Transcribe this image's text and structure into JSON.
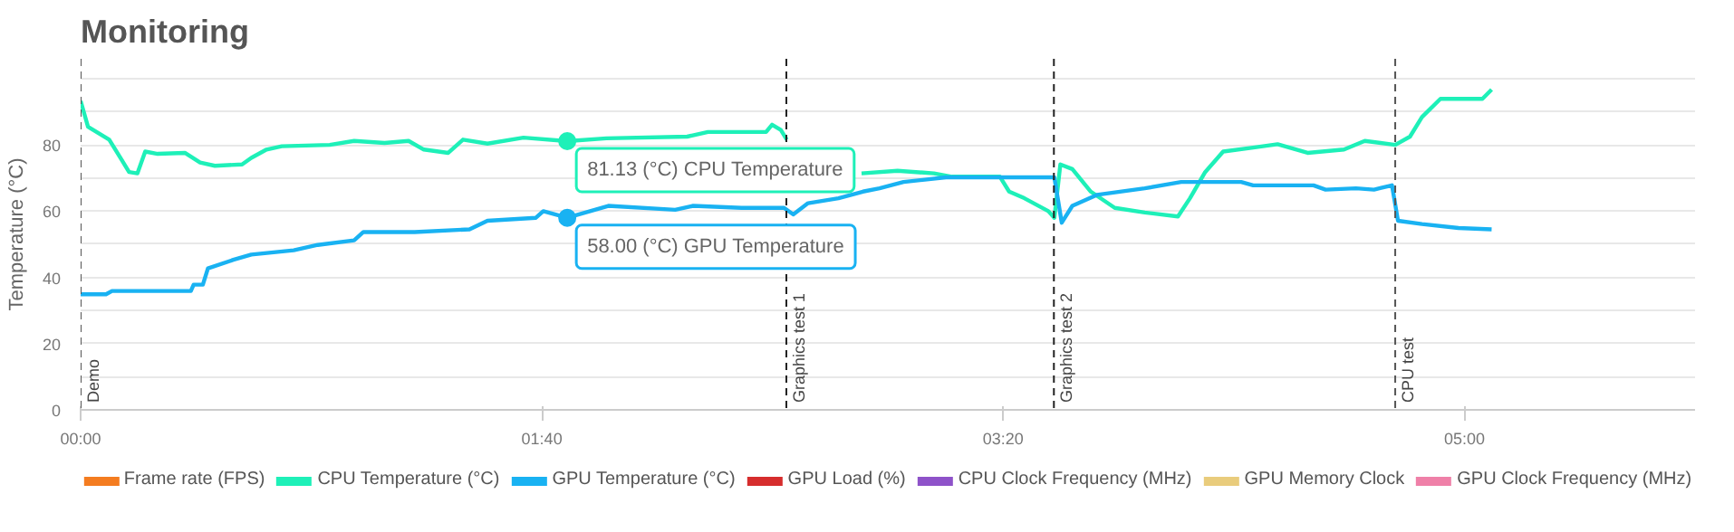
{
  "chart_data": {
    "type": "line",
    "title": "Monitoring",
    "ylabel": "Temperature (°C)",
    "xlim": [
      0,
      350
    ],
    "ylim": [
      0,
      106
    ],
    "xticks": [
      {
        "value": 0,
        "label": "00:00"
      },
      {
        "value": 100,
        "label": "01:40"
      },
      {
        "value": 200,
        "label": "03:20"
      },
      {
        "value": 300,
        "label": "05:00"
      }
    ],
    "yticks": [
      0,
      {
        "value": 10,
        "label": null
      },
      20,
      {
        "value": 30,
        "label": null
      },
      40,
      {
        "value": 50,
        "label": null
      },
      60,
      {
        "value": 70,
        "label": null
      },
      80,
      {
        "value": 90,
        "label": null
      },
      {
        "value": 100,
        "label": null
      }
    ],
    "grid": "y",
    "legend": "bottom",
    "marker": "none",
    "line_style": "solid",
    "series": [
      {
        "name": "Frame rate (FPS)",
        "color": "#f47c20"
      },
      {
        "name": "CPU Temperature (°C)",
        "color": "#1ef0b8",
        "x": [
          0,
          1.6,
          6.2,
          8.8,
          10.5,
          12.3,
          14,
          16.7,
          22.6,
          25.9,
          29.1,
          35,
          37,
          40.3,
          43.6,
          54,
          59.3,
          65.9,
          71.1,
          74.4,
          79.7,
          82.9,
          88.2,
          96,
          105.5,
          114,
          131.5,
          136,
          148.6,
          149.9,
          151.8,
          153.1,
          155,
          165.4,
          169.3,
          177.1,
          185,
          188.9,
          199.3,
          201.3,
          204.6,
          209.8,
          211.1,
          212.4,
          215,
          219,
          224.2,
          230.7,
          237.9,
          240.5,
          243.8,
          247.7,
          254.2,
          259.5,
          266,
          273.9,
          278.4,
          285,
          288.2,
          290.8,
          294.8,
          303.9,
          305.9
        ],
        "values": [
          93.3,
          85.5,
          81.6,
          75.7,
          71.8,
          71.4,
          78,
          77.3,
          77.6,
          74.7,
          73.7,
          74.1,
          76.1,
          78.6,
          79.6,
          80,
          81.2,
          80.6,
          81.2,
          78.6,
          77.6,
          81.6,
          80.4,
          82.2,
          81.13,
          82,
          82.5,
          83.9,
          83.9,
          86.1,
          84.5,
          81.6,
          null,
          null,
          71.4,
          72.2,
          71.4,
          70.4,
          70.4,
          65.9,
          63.9,
          60,
          58,
          74.1,
          72.7,
          65.9,
          61,
          59.6,
          58.4,
          63.9,
          71.8,
          78,
          79.2,
          80.2,
          77.6,
          78.6,
          81.2,
          80,
          82.5,
          88.4,
          93.9,
          93.9,
          96.7
        ]
      },
      {
        "name": "GPU Temperature (°C)",
        "color": "#19b2f2",
        "x": [
          0,
          5.5,
          6.8,
          23.9,
          24.5,
          26.5,
          27.6,
          33.1,
          37,
          46.2,
          51.4,
          59.3,
          61.3,
          72.4,
          84.3,
          88.2,
          98.7,
          100.3,
          105.5,
          114.4,
          128.9,
          132.8,
          143.3,
          152.5,
          154.5,
          157.7,
          164.3,
          169.6,
          173.2,
          178.4,
          187.6,
          211.1,
          212.7,
          215,
          220.3,
          230.7,
          238.6,
          251.6,
          254.2,
          267.3,
          269.9,
          276.5,
          280.4,
          284.3,
          285.6,
          290.8,
          298.7,
          305.9
        ],
        "values": [
          34.9,
          34.9,
          35.9,
          35.9,
          37.8,
          37.8,
          42.7,
          45.3,
          46.9,
          48.2,
          49.8,
          51.2,
          53.7,
          53.7,
          54.5,
          57.1,
          58,
          60,
          58,
          61.6,
          60.4,
          61.6,
          61,
          61,
          59,
          62.4,
          63.9,
          65.9,
          66.9,
          68.8,
          70.2,
          70.2,
          56.5,
          61.6,
          64.9,
          66.9,
          68.8,
          68.8,
          67.8,
          67.8,
          66.5,
          66.9,
          66.5,
          67.8,
          57.1,
          56.1,
          54.9,
          54.5
        ]
      },
      {
        "name": "GPU Load (%)",
        "color": "#d62d2d"
      },
      {
        "name": "CPU Clock Frequency (MHz)",
        "color": "#8e52c9"
      },
      {
        "name": "GPU Memory Clock",
        "color": "#e9cc7c"
      },
      {
        "name": "GPU Clock Frequency (MHz)",
        "color": "#ef80a8"
      }
    ],
    "ref_lines": [
      {
        "axis": "x",
        "value": 0,
        "label": "Demo",
        "color": "#555555",
        "line_style": "dashed"
      },
      {
        "axis": "x",
        "value": 153,
        "label": "Graphics test 1",
        "color": "#222222",
        "line_style": "dashed"
      },
      {
        "axis": "x",
        "value": 211,
        "label": "Graphics test 2",
        "color": "#222222",
        "line_style": "dashed"
      },
      {
        "axis": "x",
        "value": 285,
        "label": "CPU test",
        "color": "#555555",
        "line_style": "dashed"
      }
    ],
    "annotations": [
      {
        "text": "81.13 (°C) CPU Temperature",
        "x": 105.5,
        "y": 81.13
      },
      {
        "text": "58.00 (°C) GPU Temperature",
        "x": 105.5,
        "y": 58
      }
    ]
  }
}
